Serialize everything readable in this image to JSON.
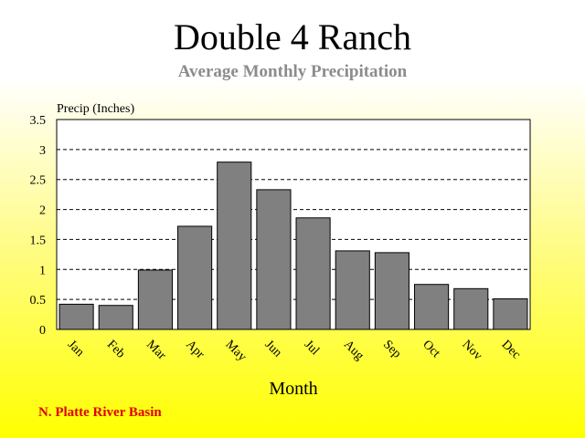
{
  "title": "Double 4 Ranch",
  "subtitle": "Average Monthly Precipitation",
  "footer": "N. Platte River Basin",
  "colors": {
    "bar": "#808080",
    "footer": "#e00000",
    "subtitle": "#8c8c8c"
  },
  "chart_data": {
    "type": "bar",
    "categories": [
      "Jan",
      "Feb",
      "Mar",
      "Apr",
      "May",
      "Jun",
      "Jul",
      "Aug",
      "Sep",
      "Oct",
      "Nov",
      "Dec"
    ],
    "values": [
      0.42,
      0.4,
      0.99,
      1.72,
      2.79,
      2.33,
      1.86,
      1.31,
      1.28,
      0.75,
      0.68,
      0.51
    ],
    "xlabel": "Month",
    "ylabel": "Precip (Inches)",
    "ylim": [
      0,
      3.5
    ],
    "yticks": [
      "0",
      "0.5",
      "1",
      "1.5",
      "2",
      "2.5",
      "3",
      "3.5"
    ],
    "grid": true
  }
}
